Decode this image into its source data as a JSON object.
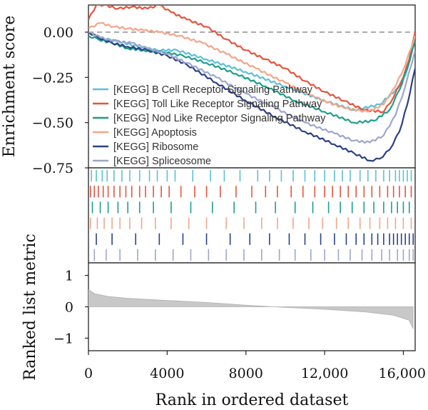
{
  "chart_data": {
    "type": "line",
    "panels": {
      "enrichment": {
        "ylabel": "Enrichment score",
        "ylim": [
          -0.75,
          0.15
        ],
        "yticks": [
          0.0,
          -0.25,
          -0.5,
          -0.75
        ],
        "ytick_labels": [
          "0.00",
          "−0.25",
          "−0.50",
          "−0.75"
        ],
        "reference_line": 0.0
      },
      "ranked_metric": {
        "ylabel": "Ranked list metric",
        "ylim": [
          -1.4,
          1.4
        ],
        "yticks": [
          1,
          0,
          -1
        ],
        "ytick_labels": [
          "1",
          "0",
          "−1"
        ],
        "x": [
          0,
          300,
          1000,
          2000,
          4000,
          6000,
          8000,
          10000,
          12000,
          14000,
          15500,
          16300,
          16500
        ],
        "values": [
          0.55,
          0.42,
          0.33,
          0.27,
          0.2,
          0.14,
          0.05,
          -0.02,
          -0.08,
          -0.16,
          -0.27,
          -0.43,
          -0.7
        ],
        "fill_color": "#c8c8c8"
      }
    },
    "xlabel": "Rank in ordered dataset",
    "xlim": [
      0,
      16600
    ],
    "xticks": [
      0,
      4000,
      8000,
      12000,
      16000
    ],
    "xtick_labels": [
      "0",
      "4000",
      "8000",
      "12,000",
      "16,000"
    ],
    "legend": {
      "position": "center-left",
      "loc_hint": "inside enrichment panel"
    },
    "series": [
      {
        "name": "[KEGG] B Cell Receptor Signaling Pathway",
        "color": "#5bc0d8",
        "x": [
          0,
          800,
          1500,
          2500,
          3500,
          4500,
          6000,
          8000,
          10000,
          12000,
          13500,
          14800,
          15600,
          16100,
          16400,
          16600
        ],
        "y": [
          0.0,
          -0.04,
          -0.05,
          -0.08,
          -0.1,
          -0.1,
          -0.15,
          -0.22,
          -0.3,
          -0.38,
          -0.43,
          -0.4,
          -0.32,
          -0.24,
          -0.12,
          0.0
        ],
        "hits": [
          150,
          400,
          700,
          950,
          1300,
          1700,
          2100,
          2600,
          3100,
          3500,
          4000,
          4400,
          5300,
          6200,
          6900,
          7700,
          8600,
          9200,
          9800,
          10400,
          11000,
          11500,
          12000,
          12500,
          12900,
          13300,
          13800,
          14200,
          14600,
          15000,
          15300,
          15600,
          15800,
          16000,
          16200,
          16400
        ]
      },
      {
        "name": "[KEGG] Toll Like Receptor Signaling Pathway",
        "color": "#e8533d",
        "x": [
          0,
          400,
          800,
          1500,
          2200,
          3000,
          3600,
          4200,
          5000,
          6000,
          7000,
          8000,
          9000,
          10000,
          11000,
          12000,
          13000,
          14000,
          15000,
          15500,
          16000,
          16300,
          16600
        ],
        "y": [
          0.07,
          0.15,
          0.15,
          0.13,
          0.14,
          0.13,
          0.15,
          0.11,
          0.07,
          0.03,
          -0.04,
          -0.1,
          -0.15,
          -0.2,
          -0.27,
          -0.33,
          -0.38,
          -0.43,
          -0.44,
          -0.36,
          -0.25,
          -0.15,
          0.0
        ],
        "hits": [
          100,
          300,
          500,
          750,
          1000,
          1300,
          1600,
          1900,
          2200,
          2600,
          2900,
          3300,
          3700,
          4100,
          4700,
          5400,
          6000,
          6700,
          7500,
          8300,
          9000,
          9600,
          10300,
          10900,
          11500,
          12000,
          12400,
          12800,
          13200,
          13600,
          14000,
          14400,
          14800,
          15200,
          15500,
          15800,
          16100,
          16400
        ]
      },
      {
        "name": "[KEGG] Nod Like Receptor Signaling Pathway",
        "color": "#1e9e8a",
        "x": [
          0,
          500,
          1200,
          2000,
          2800,
          3800,
          4800,
          6000,
          7500,
          9000,
          10500,
          12000,
          13500,
          14500,
          15300,
          15800,
          16200,
          16600
        ],
        "y": [
          -0.02,
          -0.04,
          -0.06,
          -0.09,
          -0.1,
          -0.11,
          -0.13,
          -0.17,
          -0.23,
          -0.3,
          -0.38,
          -0.44,
          -0.5,
          -0.49,
          -0.43,
          -0.32,
          -0.2,
          -0.05
        ],
        "hits": [
          200,
          600,
          1000,
          1500,
          2000,
          2600,
          3300,
          4200,
          5200,
          6300,
          7400,
          8500,
          9500,
          10500,
          11400,
          12200,
          12800,
          13400,
          14000,
          14500,
          15000,
          15400,
          15700,
          16000,
          16300
        ]
      },
      {
        "name": "[KEGG] Apoptosis",
        "color": "#f4a489",
        "x": [
          0,
          600,
          1300,
          2000,
          2800,
          3600,
          4600,
          5800,
          7000,
          8500,
          10000,
          11500,
          13000,
          14200,
          15000,
          15600,
          16100,
          16600
        ],
        "y": [
          0.02,
          0.05,
          0.03,
          0.02,
          0.01,
          0.0,
          -0.02,
          -0.06,
          -0.12,
          -0.2,
          -0.28,
          -0.36,
          -0.42,
          -0.44,
          -0.4,
          -0.3,
          -0.18,
          -0.02
        ],
        "hits": [
          100,
          450,
          800,
          1200,
          1600,
          2100,
          2700,
          3400,
          4200,
          5100,
          6000,
          7000,
          7900,
          8800,
          9600,
          10400,
          11200,
          11900,
          12600,
          13200,
          13800,
          14300,
          14800,
          15200,
          15600,
          16000,
          16400
        ]
      },
      {
        "name": "[KEGG] Ribosome",
        "color": "#2b4187",
        "x": [
          0,
          500,
          1200,
          2000,
          3000,
          4000,
          5000,
          6500,
          8000,
          9500,
          11000,
          12500,
          13500,
          14300,
          14800,
          15300,
          15800,
          16200,
          16600
        ],
        "y": [
          0.0,
          -0.03,
          -0.06,
          -0.08,
          -0.1,
          -0.13,
          -0.18,
          -0.28,
          -0.38,
          -0.47,
          -0.55,
          -0.62,
          -0.67,
          -0.71,
          -0.7,
          -0.65,
          -0.55,
          -0.4,
          -0.2
        ],
        "hits": [
          400,
          1200,
          2400,
          3600,
          4800,
          6000,
          7200,
          8200,
          9200,
          10200,
          11000,
          11800,
          12500,
          13100,
          13600,
          14000,
          14400,
          14700,
          15000,
          15300,
          15500,
          15700,
          15900,
          16100,
          16300,
          16500
        ]
      },
      {
        "name": "[KEGG] Spliceosome",
        "color": "#9da6cc",
        "x": [
          0,
          600,
          1400,
          2200,
          3000,
          4000,
          5000,
          6500,
          8000,
          9500,
          11000,
          12500,
          13500,
          14300,
          15000,
          15600,
          16100,
          16600
        ],
        "y": [
          0.0,
          -0.03,
          -0.05,
          -0.06,
          -0.09,
          -0.12,
          -0.17,
          -0.25,
          -0.34,
          -0.42,
          -0.5,
          -0.56,
          -0.6,
          -0.61,
          -0.57,
          -0.46,
          -0.3,
          -0.1
        ],
        "hits": [
          300,
          900,
          1600,
          2500,
          3400,
          4300,
          5200,
          6100,
          7000,
          7900,
          8800,
          9700,
          10500,
          11300,
          12000,
          12700,
          13300,
          13900,
          14400,
          14900,
          15300,
          15700,
          16000,
          16300,
          16500
        ]
      }
    ]
  }
}
